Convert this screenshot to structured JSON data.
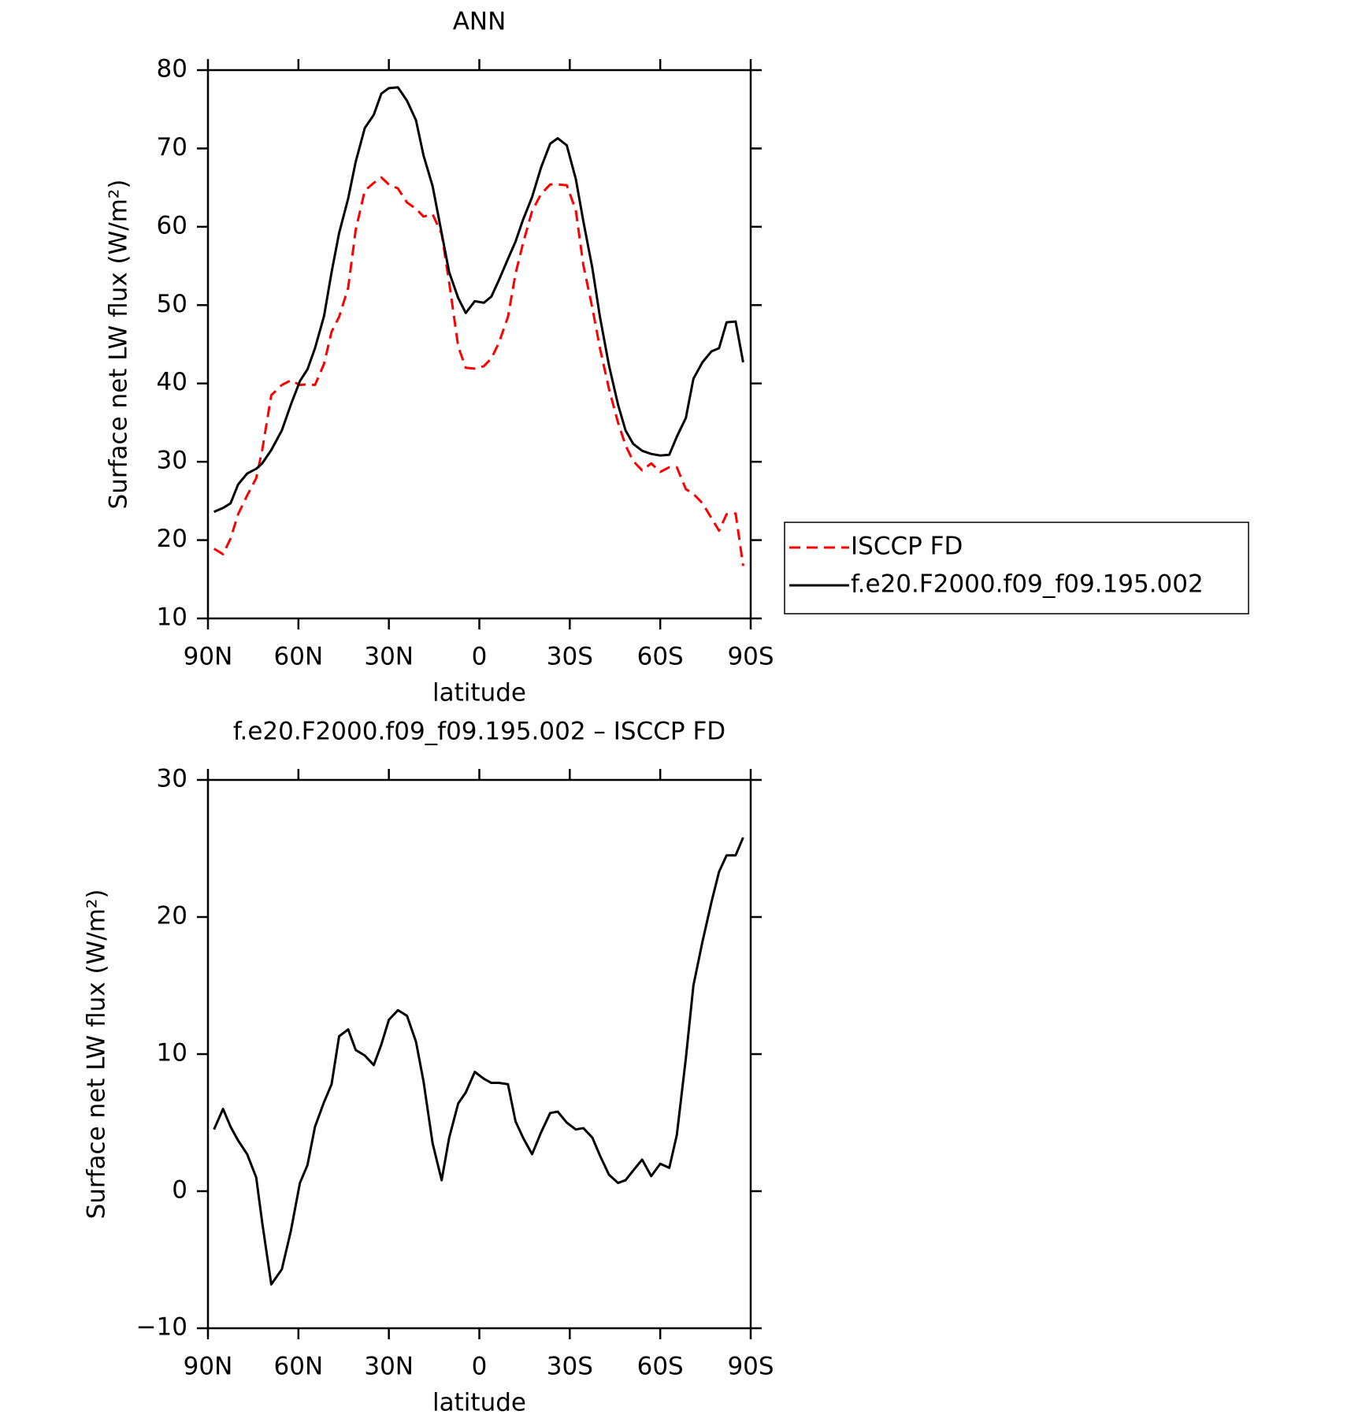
{
  "chart_data": [
    {
      "type": "line",
      "title": "ANN",
      "xlabel": "latitude",
      "ylabel": "Surface net LW flux (W/m²)",
      "xlim": [
        90,
        -90
      ],
      "ylim": [
        10,
        80
      ],
      "xticks": [
        {
          "value": 90,
          "label": "90N"
        },
        {
          "value": 60,
          "label": "60N"
        },
        {
          "value": 30,
          "label": "30N"
        },
        0,
        {
          "value": -30,
          "label": "30S"
        },
        {
          "value": -60,
          "label": "60S"
        },
        {
          "value": -90,
          "label": "90S"
        }
      ],
      "yticks": [
        10,
        20,
        30,
        40,
        50,
        60,
        70,
        80
      ],
      "legend": "right",
      "x": [
        88,
        85,
        82.5,
        80,
        77,
        74,
        72,
        69,
        65.5,
        62.5,
        59.5,
        57,
        54.5,
        51.5,
        49,
        46.5,
        43.5,
        41,
        38,
        35,
        32.5,
        30,
        27,
        24,
        21,
        18.5,
        15.5,
        12.5,
        10,
        7,
        4.5,
        1.5,
        -1.5,
        -4,
        -6.5,
        -9.5,
        -12,
        -14.5,
        -17.5,
        -20.5,
        -23.5,
        -26,
        -29,
        -32,
        -34.5,
        -37.5,
        -40,
        -43,
        -46,
        -48.5,
        -51,
        -54,
        -57,
        -60,
        -63,
        -65.5,
        -68.5,
        -71,
        -74,
        -77,
        -79.5,
        -82,
        -85,
        -87.5
      ],
      "series": [
        {
          "name": "ISCCP FD",
          "color": "#ff0000",
          "linestyle": "dashed",
          "values": [
            18.9,
            18.2,
            20.2,
            23.3,
            25.7,
            27.9,
            31.5,
            38.5,
            39.8,
            40.4,
            39.8,
            39.9,
            39.8,
            42.5,
            46.6,
            48.5,
            52.2,
            59.6,
            64.6,
            65.6,
            66.3,
            65.4,
            64.9,
            63.1,
            62.3,
            61.3,
            61.6,
            59.1,
            52.9,
            44.7,
            42.0,
            41.9,
            42.2,
            43.2,
            45.2,
            48.5,
            54.0,
            57.9,
            62.0,
            64.2,
            65.4,
            65.4,
            65.3,
            62.1,
            55.1,
            49.6,
            44.5,
            39.3,
            35.0,
            32.1,
            30.1,
            28.9,
            29.8,
            28.7,
            29.3,
            29.3,
            26.5,
            25.9,
            24.7,
            22.8,
            21.2,
            23.3,
            23.4,
            16.7
          ]
        },
        {
          "name": "f.e20.F2000.f09_f09.195.002",
          "color": "#000000",
          "linestyle": "solid",
          "values": [
            23.6,
            24.1,
            24.7,
            27.1,
            28.5,
            29.1,
            29.8,
            31.5,
            34.0,
            37.3,
            40.3,
            41.8,
            44.5,
            48.6,
            54.2,
            59.2,
            63.6,
            68.3,
            72.6,
            74.3,
            77.0,
            77.7,
            77.8,
            76.1,
            73.6,
            69.1,
            65.2,
            59.2,
            54.2,
            50.9,
            49.0,
            50.5,
            50.3,
            51.1,
            53.2,
            55.9,
            58.1,
            60.9,
            63.8,
            67.6,
            70.6,
            71.3,
            70.4,
            66.1,
            60.7,
            54.7,
            48.5,
            42.3,
            37.3,
            34.0,
            32.3,
            31.4,
            31.0,
            30.8,
            30.9,
            33.2,
            35.6,
            40.6,
            42.7,
            44.1,
            44.5,
            47.8,
            47.9,
            42.7
          ]
        }
      ]
    },
    {
      "type": "line",
      "title": "f.e20.F2000.f09_f09.195.002 – ISCCP FD",
      "xlabel": "latitude",
      "ylabel": "Surface net LW flux (W/m²)",
      "xlim": [
        90,
        -90
      ],
      "ylim": [
        -10,
        30
      ],
      "xticks": [
        {
          "value": 90,
          "label": "90N"
        },
        {
          "value": 60,
          "label": "60N"
        },
        {
          "value": 30,
          "label": "30N"
        },
        0,
        {
          "value": -30,
          "label": "30S"
        },
        {
          "value": -60,
          "label": "60S"
        },
        {
          "value": -90,
          "label": "90S"
        }
      ],
      "yticks": [
        {
          "value": -10,
          "label": "−10"
        },
        0,
        10,
        20,
        30
      ],
      "x": [
        88,
        85,
        82.5,
        80,
        77,
        74,
        72,
        69,
        65.5,
        62.5,
        59.5,
        57,
        54.5,
        51.5,
        49,
        46.5,
        43.5,
        41,
        38,
        35,
        32.5,
        30,
        27,
        24,
        21,
        18.5,
        15.5,
        12.5,
        10,
        7,
        4.5,
        1.5,
        -1.5,
        -4,
        -6.5,
        -9.5,
        -12,
        -14.5,
        -17.5,
        -20.5,
        -23.5,
        -26,
        -29,
        -32,
        -34.5,
        -37.5,
        -40,
        -43,
        -46,
        -48.5,
        -51,
        -54,
        -57,
        -60,
        -63,
        -65.5,
        -68.5,
        -71,
        -74,
        -77,
        -79.5,
        -82,
        -85,
        -87.5
      ],
      "color": "#000000",
      "values": [
        4.5,
        6.0,
        4.7,
        3.7,
        2.7,
        1.0,
        -2.3,
        -6.8,
        -5.7,
        -2.9,
        0.6,
        1.9,
        4.7,
        6.5,
        7.8,
        11.3,
        11.8,
        10.3,
        9.9,
        9.2,
        10.7,
        12.5,
        13.2,
        12.8,
        10.9,
        8.0,
        3.5,
        0.8,
        3.9,
        6.4,
        7.2,
        8.7,
        8.2,
        7.9,
        7.9,
        7.8,
        5.1,
        3.9,
        2.7,
        4.3,
        5.7,
        5.8,
        5.0,
        4.5,
        4.6,
        3.9,
        2.6,
        1.2,
        0.6,
        0.8,
        1.5,
        2.3,
        1.1,
        2.0,
        1.7,
        4.1,
        9.7,
        15.0,
        18.2,
        21.1,
        23.3,
        24.5,
        24.5,
        25.8
      ]
    }
  ]
}
